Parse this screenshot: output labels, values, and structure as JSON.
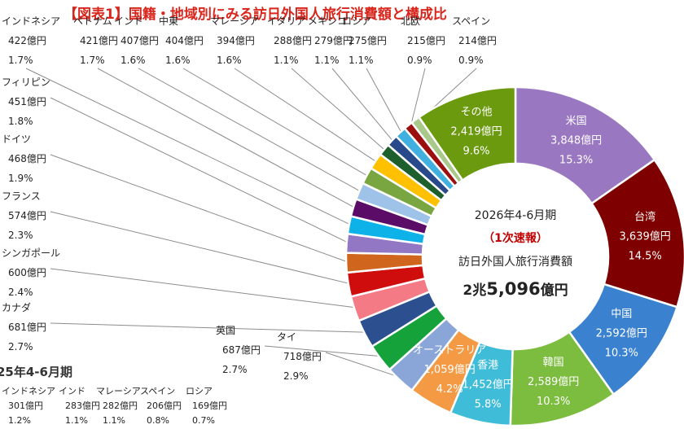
{
  "title": "【図表1】国籍・地域別にみる訪日外国人旅行消費額と構成比",
  "center": {
    "period": "2026年4-6月期",
    "status": "（1次速報）",
    "label": "訪日外国人旅行消費額",
    "total_a": "2兆",
    "total_b": "5,096",
    "total_c": "億円"
  },
  "chart_data": {
    "type": "pie",
    "donut": true,
    "unit": "億円",
    "total": "2兆5,096億円",
    "slices": [
      {
        "name": "米国",
        "value": 3848,
        "value_label": "3,848億円",
        "pct": "15.3%",
        "color": "#9a77c1"
      },
      {
        "name": "台湾",
        "value": 3639,
        "value_label": "3,639億円",
        "pct": "14.5%",
        "color": "#7f0000"
      },
      {
        "name": "中国",
        "value": 2592,
        "value_label": "2,592億円",
        "pct": "10.3%",
        "color": "#3a82cf"
      },
      {
        "name": "韓国",
        "value": 2589,
        "value_label": "2,589億円",
        "pct": "10.3%",
        "color": "#7cbc3e"
      },
      {
        "name": "香港",
        "value": 1452,
        "value_label": "1,452億円",
        "pct": "5.8%",
        "color": "#3fbcd8"
      },
      {
        "name": "オーストラリア",
        "value": 1059,
        "value_label": "1,059億円",
        "pct": "4.2%",
        "color": "#f59a44"
      },
      {
        "name": "タイ",
        "value": 718,
        "value_label": "718億円",
        "pct": "2.9%",
        "color": "#8aa6d8"
      },
      {
        "name": "英国",
        "value": 687,
        "value_label": "687億円",
        "pct": "2.7%",
        "color": "#15a23a"
      },
      {
        "name": "カナダ",
        "value": 681,
        "value_label": "681億円",
        "pct": "2.7%",
        "color": "#2c4f8f"
      },
      {
        "name": "シンガポール",
        "value": 600,
        "value_label": "600億円",
        "pct": "2.4%",
        "color": "#f47a86"
      },
      {
        "name": "フランス",
        "value": 574,
        "value_label": "574億円",
        "pct": "2.3%",
        "color": "#d00d0d"
      },
      {
        "name": "ドイツ",
        "value": 468,
        "value_label": "468億円",
        "pct": "1.9%",
        "color": "#d0651e"
      },
      {
        "name": "フィリピン",
        "value": 451,
        "value_label": "451億円",
        "pct": "1.8%",
        "color": "#9277c4"
      },
      {
        "name": "インドネシア",
        "value": 422,
        "value_label": "422億円",
        "pct": "1.7%",
        "color": "#0db2e8"
      },
      {
        "name": "ベトナム",
        "value": 421,
        "value_label": "421億円",
        "pct": "1.7%",
        "color": "#5a0c66"
      },
      {
        "name": "インド",
        "value": 407,
        "value_label": "407億円",
        "pct": "1.6%",
        "color": "#9fc2e8"
      },
      {
        "name": "中東",
        "value": 404,
        "value_label": "404億円",
        "pct": "1.6%",
        "color": "#7aa642"
      },
      {
        "name": "マレーシア",
        "value": 394,
        "value_label": "394億円",
        "pct": "1.6%",
        "color": "#ffc000"
      },
      {
        "name": "イタリア",
        "value": 288,
        "value_label": "288億円",
        "pct": "1.1%",
        "color": "#1e5f2e"
      },
      {
        "name": "メキシコ",
        "value": 279,
        "value_label": "279億円",
        "pct": "1.1%",
        "color": "#284a8a"
      },
      {
        "name": "ロシア",
        "value": 275,
        "value_label": "275億円",
        "pct": "1.1%",
        "color": "#40b0e0"
      },
      {
        "name": "北欧",
        "value": 215,
        "value_label": "215億円",
        "pct": "0.9%",
        "color": "#9b0f0f"
      },
      {
        "name": "スペイン",
        "value": 214,
        "value_label": "214億円",
        "pct": "0.9%",
        "color": "#a8c98a"
      },
      {
        "name": "その他",
        "value": 2419,
        "value_label": "2,419億円",
        "pct": "9.6%",
        "color": "#6b9a0e"
      }
    ],
    "previous": {
      "title": "25年4-6月期",
      "items": [
        {
          "name": "インドネシア",
          "value_label": "301億円",
          "pct": "1.2%"
        },
        {
          "name": "インド",
          "value_label": "283億円",
          "pct": "1.1%"
        },
        {
          "name": "マレーシア",
          "value_label": "282億円",
          "pct": "1.1%"
        },
        {
          "name": "スペイン",
          "value_label": "206億円",
          "pct": "0.8%"
        },
        {
          "name": "ロシア",
          "value_label": "169億円",
          "pct": "0.7%"
        }
      ]
    }
  }
}
